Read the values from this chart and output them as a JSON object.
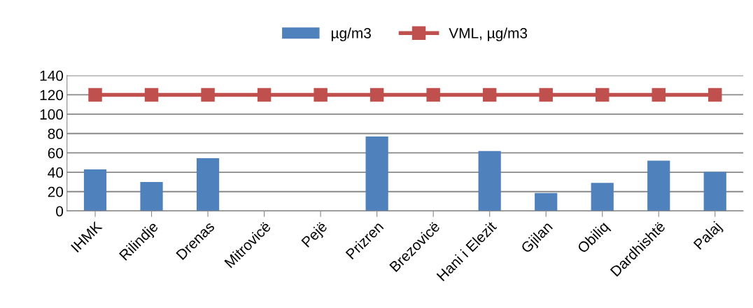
{
  "chart_data": {
    "type": "bar",
    "categories": [
      "IHMK",
      "Rilindje",
      "Drenas",
      "Mitrovicë",
      "Pejë",
      "Prizren",
      "Brezovicë",
      "Hani i Elezit",
      "Gjilan",
      "Obiliq",
      "Dardhishtë",
      "Palaj"
    ],
    "series": [
      {
        "name": "µg/m3",
        "color": "#4f81bd",
        "values": [
          43,
          30,
          54.5,
          null,
          null,
          77,
          null,
          62,
          18.5,
          29,
          52,
          40.5
        ]
      },
      {
        "name": "VML, µg/m3",
        "type": "line",
        "color": "#c0504d",
        "marker": "square",
        "values": [
          120,
          120,
          120,
          120,
          120,
          120,
          120,
          120,
          120,
          120,
          120,
          120
        ]
      }
    ],
    "ylim": [
      0,
      140
    ],
    "yticks": [
      0,
      20,
      40,
      60,
      80,
      100,
      120,
      140
    ],
    "grid": "y",
    "legend": "top"
  }
}
